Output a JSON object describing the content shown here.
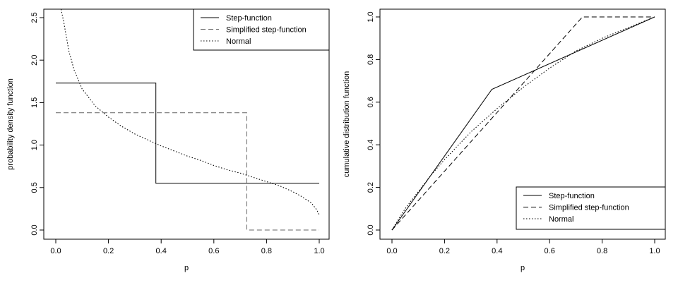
{
  "chart_data": [
    {
      "type": "line",
      "xlabel": "p",
      "ylabel": "probability density function",
      "xlim": [
        0.0,
        1.0
      ],
      "ylim": [
        0.0,
        2.5
      ],
      "xticks": [
        "0.0",
        "0.2",
        "0.4",
        "0.6",
        "0.8",
        "1.0"
      ],
      "yticks": [
        "0.0",
        "0.5",
        "1.0",
        "1.5",
        "2.0",
        "2.5"
      ],
      "legend_position": "top-right",
      "grid": false,
      "series": [
        {
          "name": "Step-function",
          "style": "solid",
          "color": "#000000",
          "x": [
            0.0,
            0.38,
            0.38,
            1.0
          ],
          "y": [
            1.73,
            1.73,
            0.55,
            0.55
          ]
        },
        {
          "name": "Simplified step-function",
          "style": "dashed",
          "color": "#666666",
          "x": [
            0.0,
            0.725,
            0.725,
            1.0
          ],
          "y": [
            1.38,
            1.38,
            0.0,
            0.0
          ]
        },
        {
          "name": "Normal",
          "style": "dotted",
          "color": "#000000",
          "x": [
            0.02,
            0.03,
            0.05,
            0.07,
            0.1,
            0.15,
            0.2,
            0.25,
            0.3,
            0.35,
            0.4,
            0.45,
            0.5,
            0.55,
            0.6,
            0.65,
            0.7,
            0.75,
            0.8,
            0.85,
            0.9,
            0.93,
            0.95,
            0.97,
            0.98,
            0.99,
            1.0
          ],
          "y": [
            2.6,
            2.45,
            2.1,
            1.88,
            1.66,
            1.46,
            1.33,
            1.22,
            1.13,
            1.06,
            0.99,
            0.93,
            0.87,
            0.82,
            0.76,
            0.71,
            0.67,
            0.62,
            0.57,
            0.52,
            0.45,
            0.4,
            0.36,
            0.32,
            0.28,
            0.24,
            0.18
          ]
        }
      ]
    },
    {
      "type": "line",
      "xlabel": "p",
      "ylabel": "cumulative distribution function",
      "xlim": [
        0.0,
        1.0
      ],
      "ylim": [
        0.0,
        1.0
      ],
      "xticks": [
        "0.0",
        "0.2",
        "0.4",
        "0.6",
        "0.8",
        "1.0"
      ],
      "yticks": [
        "0.0",
        "0.2",
        "0.4",
        "0.6",
        "0.8",
        "1.0"
      ],
      "legend_position": "bottom-right",
      "grid": false,
      "series": [
        {
          "name": "Step-function",
          "style": "solid",
          "color": "#000000",
          "x": [
            0.0,
            0.38,
            1.0
          ],
          "y": [
            0.0,
            0.66,
            1.0
          ]
        },
        {
          "name": "Simplified step-function",
          "style": "dashed",
          "color": "#000000",
          "x": [
            0.0,
            0.725,
            1.0
          ],
          "y": [
            0.0,
            1.0,
            1.0
          ]
        },
        {
          "name": "Normal",
          "style": "dotted",
          "color": "#000000",
          "x": [
            0.0,
            0.05,
            0.1,
            0.15,
            0.2,
            0.3,
            0.4,
            0.5,
            0.6,
            0.7,
            0.8,
            0.9,
            1.0
          ],
          "y": [
            0.0,
            0.1,
            0.18,
            0.26,
            0.33,
            0.46,
            0.57,
            0.67,
            0.76,
            0.84,
            0.9,
            0.95,
            1.0
          ]
        }
      ]
    }
  ]
}
